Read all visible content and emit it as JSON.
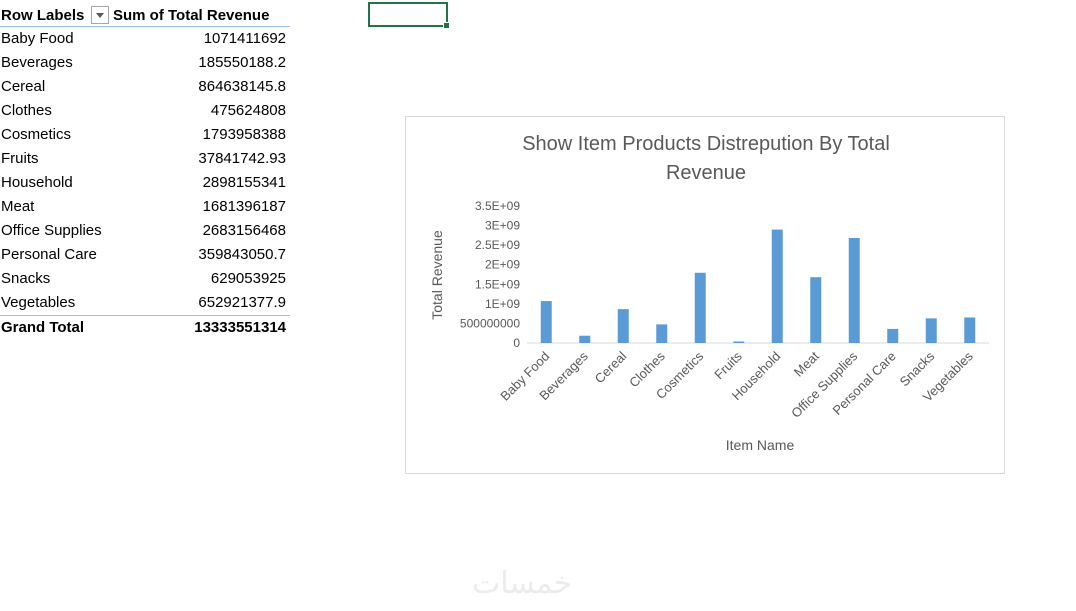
{
  "pivot": {
    "header": {
      "row_labels": "Row Labels",
      "sum_label": "Sum of Total Revenue"
    },
    "rows": [
      {
        "name": "Baby Food",
        "value": "1071411692"
      },
      {
        "name": "Beverages",
        "value": "185550188.2"
      },
      {
        "name": "Cereal",
        "value": "864638145.8"
      },
      {
        "name": "Clothes",
        "value": "475624808"
      },
      {
        "name": "Cosmetics",
        "value": "1793958388"
      },
      {
        "name": "Fruits",
        "value": "37841742.93"
      },
      {
        "name": "Household",
        "value": "2898155341"
      },
      {
        "name": "Meat",
        "value": "1681396187"
      },
      {
        "name": "Office Supplies",
        "value": "2683156468"
      },
      {
        "name": "Personal Care",
        "value": "359843050.7"
      },
      {
        "name": "Snacks",
        "value": "629053925"
      },
      {
        "name": "Vegetables",
        "value": "652921377.9"
      }
    ],
    "grand_total": {
      "name": "Grand Total",
      "value": "13333551314"
    }
  },
  "watermark": "خمسات",
  "chart_data": {
    "type": "bar",
    "title": "Show Item Products Distrepution By Total Revenue",
    "title_lines": [
      "Show Item Products Distrepution By Total",
      "Revenue"
    ],
    "xlabel": "Item Name",
    "ylabel": "Total Revenue",
    "categories": [
      "Baby Food",
      "Beverages",
      "Cereal",
      "Clothes",
      "Cosmetics",
      "Fruits",
      "Household",
      "Meat",
      "Office Supplies",
      "Personal Care",
      "Snacks",
      "Vegetables"
    ],
    "values": [
      1071411692,
      185550188.2,
      864638145.8,
      475624808,
      1793958388,
      37841742.93,
      2898155341,
      1681396187,
      2683156468,
      359843050.7,
      629053925,
      652921377.9
    ],
    "ylim": [
      0,
      3500000000
    ],
    "yticks": [
      {
        "value": 0,
        "label": "0"
      },
      {
        "value": 500000000,
        "label": "500000000"
      },
      {
        "value": 1000000000,
        "label": "1E+09"
      },
      {
        "value": 1500000000,
        "label": "1.5E+09"
      },
      {
        "value": 2000000000,
        "label": "2E+09"
      },
      {
        "value": 2500000000,
        "label": "2.5E+09"
      },
      {
        "value": 3000000000,
        "label": "3E+09"
      },
      {
        "value": 3500000000,
        "label": "3.5E+09"
      }
    ],
    "bar_color": "#5b9bd5",
    "grid": false,
    "legend": "none"
  }
}
